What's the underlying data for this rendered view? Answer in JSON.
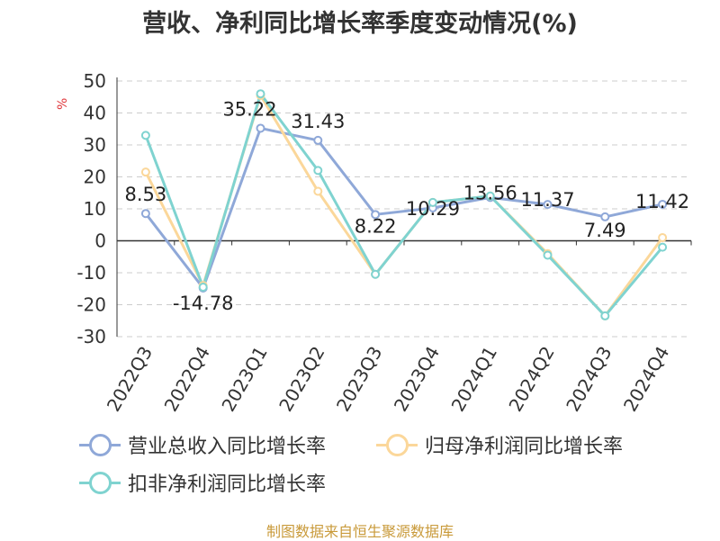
{
  "title": "营收、净利同比增长率季度变动情况(%)",
  "footer": "制图数据来自恒生聚源数据库",
  "chart_data": {
    "type": "line",
    "ylabel": "%",
    "categories": [
      "2022Q3",
      "2022Q4",
      "2023Q1",
      "2023Q2",
      "2023Q3",
      "2023Q4",
      "2024Q1",
      "2024Q2",
      "2024Q3",
      "2024Q4"
    ],
    "ylim": [
      -30,
      50
    ],
    "yticks": [
      50,
      40,
      30,
      20,
      10,
      0,
      -10,
      -20,
      -30
    ],
    "grid": true,
    "legend_position": "bottom",
    "series": [
      {
        "name": "营业总收入同比增长率",
        "color": "#8fa8d8",
        "values": [
          8.53,
          -14.78,
          35.22,
          31.43,
          8.22,
          10.29,
          13.56,
          11.37,
          7.49,
          11.42
        ],
        "labels": [
          "8.53",
          "-14.78",
          "35.22",
          "31.43",
          "8.22",
          "10.29",
          "13.56",
          "11.37",
          "7.49",
          "11.42"
        ]
      },
      {
        "name": "归母净利润同比增长率",
        "color": "#fbd79a",
        "values": [
          21.5,
          -14.0,
          45.5,
          15.5,
          -10.5,
          12.0,
          14.0,
          -4.0,
          -23.5,
          1.0
        ]
      },
      {
        "name": "扣非净利润同比增长率",
        "color": "#7fd3d0",
        "values": [
          33.0,
          -14.5,
          46.0,
          22.0,
          -10.5,
          12.0,
          14.0,
          -4.5,
          -23.5,
          -2.0
        ]
      }
    ]
  }
}
